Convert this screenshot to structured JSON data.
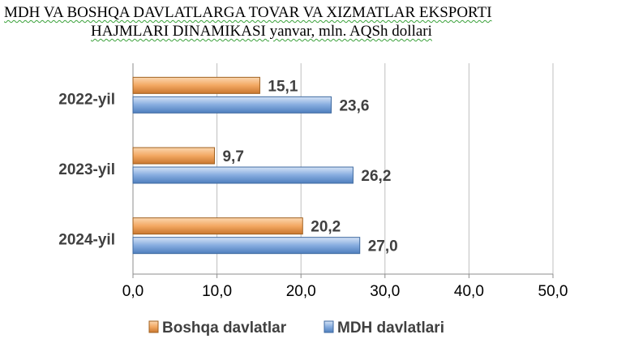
{
  "chart_data": {
    "type": "bar",
    "orientation": "horizontal",
    "title_line1": "MDH VA BOSHQA DAVLATLARGA TOVAR VA XIZMATLAR EKSPORTI",
    "title_line2": "HAJMLARI DINAMIKASI yanvar, mln. AQSh dollari",
    "categories": [
      "2022-yil",
      "2023-yil",
      "2024-yil"
    ],
    "series": [
      {
        "name": "Boshqa davlatlar",
        "values": [
          15.1,
          9.7,
          20.2
        ],
        "labels": [
          "15,1",
          "9,7",
          "20,2"
        ],
        "color": "#f0a35c"
      },
      {
        "name": "MDH davlatlari",
        "values": [
          23.6,
          26.2,
          27.0
        ],
        "labels": [
          "23,6",
          "26,2",
          "27,0"
        ],
        "color": "#7aa6dc"
      }
    ],
    "xlim": [
      0,
      50
    ],
    "xticks": [
      0,
      10,
      20,
      30,
      40,
      50
    ],
    "xtick_labels": [
      "0,0",
      "10,0",
      "20,0",
      "30,0",
      "40,0",
      "50,0"
    ],
    "grid": true,
    "legend_position": "bottom"
  }
}
